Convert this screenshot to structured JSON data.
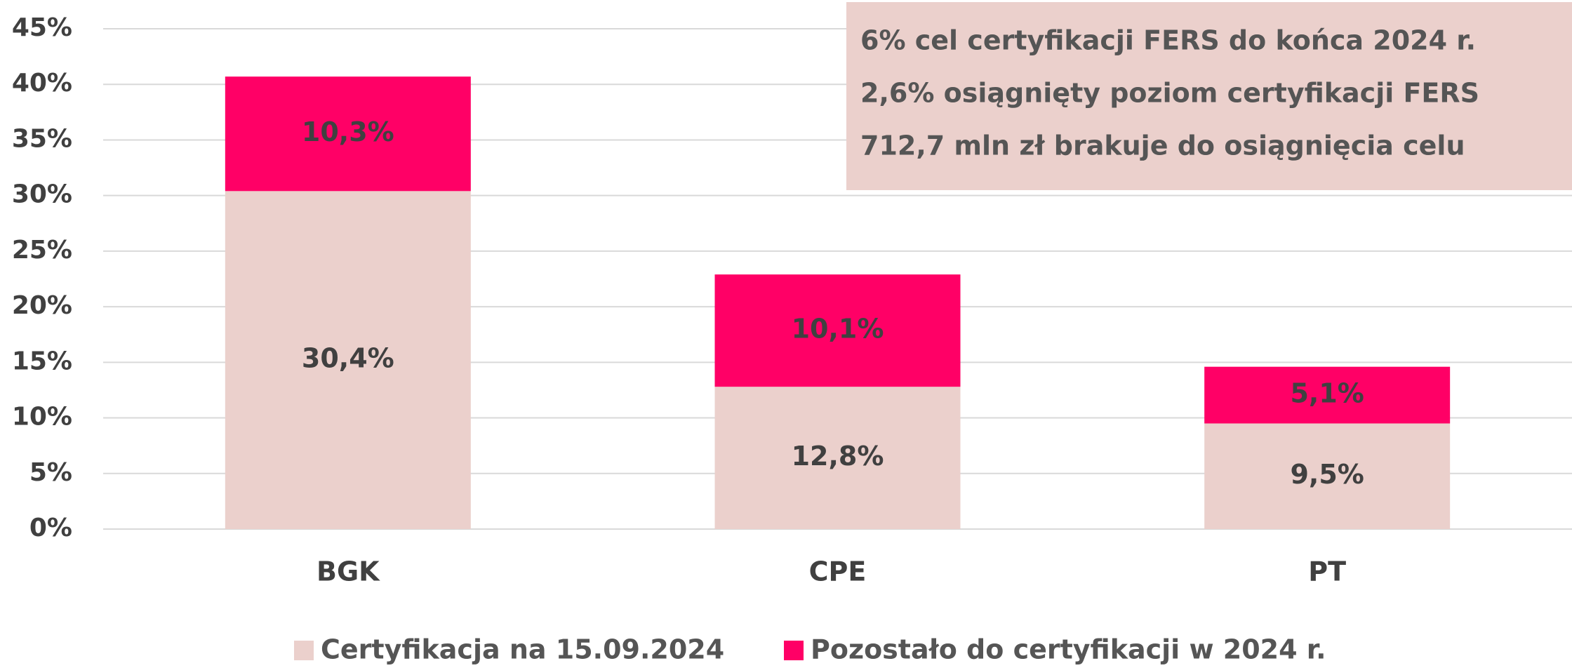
{
  "chart_data": {
    "type": "stacked_bar",
    "categories": [
      "BGK",
      "CPE",
      "PT"
    ],
    "series": [
      {
        "name": "Certyfikacja na 15.09.2024",
        "color": "#ebd0cc",
        "values": [
          30.4,
          12.8,
          9.5
        ],
        "value_labels": [
          "30,4%",
          "12,8%",
          "9,5%"
        ]
      },
      {
        "name": "Pozostało do certyfikacji w 2024 r.",
        "color": "#ff0066",
        "values": [
          10.3,
          10.1,
          5.1
        ],
        "value_labels": [
          "10,3%",
          "10,1%",
          "5,1%"
        ]
      }
    ],
    "ylim": [
      0,
      45
    ],
    "yticks": [
      {
        "value": 0,
        "label": "0%"
      },
      {
        "value": 5,
        "label": "5%"
      },
      {
        "value": 10,
        "label": "10%"
      },
      {
        "value": 15,
        "label": "15%"
      },
      {
        "value": 20,
        "label": "20%"
      },
      {
        "value": 25,
        "label": "25%"
      },
      {
        "value": 30,
        "label": "30%"
      },
      {
        "value": 35,
        "label": "35%"
      },
      {
        "value": 40,
        "label": "40%"
      },
      {
        "value": 45,
        "label": "45%"
      }
    ],
    "grid": true,
    "annotations": [
      "6% cel certyfikacji FERS do końca 2024 r.",
      "2,6% osiągnięty poziom certyfikacji FERS",
      "712,7 mln zł brakuje do osiągnięcia celu"
    ]
  }
}
